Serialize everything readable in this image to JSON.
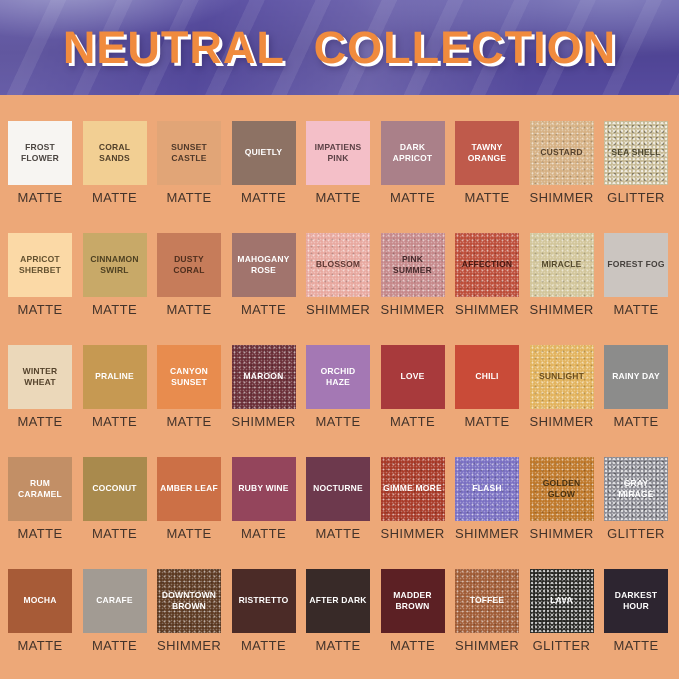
{
  "header": {
    "title": "NEUTRAL COLLECTION"
  },
  "colors": {
    "background": "#eda878",
    "header_background": "#4f4494",
    "title_color": "#f08b3e",
    "title_outline": "#ffffff",
    "finish_label_color": "#43332a"
  },
  "palette": {
    "rows": [
      [
        {
          "name": "FROST FLOWER",
          "finish": "MATTE",
          "color": "#f7f5f2",
          "label_color": "#4a4440"
        },
        {
          "name": "CORAL SANDS",
          "finish": "MATTE",
          "color": "#f2cf93",
          "label_color": "#51402a"
        },
        {
          "name": "SUNSET CASTLE",
          "finish": "MATTE",
          "color": "#e1a577",
          "label_color": "#50392a"
        },
        {
          "name": "QUIETLY",
          "finish": "MATTE",
          "color": "#8d7264",
          "label_color": "#ffffff"
        },
        {
          "name": "IMPATIENS PINK",
          "finish": "MATTE",
          "color": "#f4bfc8",
          "label_color": "#5c4146"
        },
        {
          "name": "DARK APRICOT",
          "finish": "MATTE",
          "color": "#aa8089",
          "label_color": "#ffffff"
        },
        {
          "name": "TAWNY ORANGE",
          "finish": "MATTE",
          "color": "#bf5a4b",
          "label_color": "#ffffff"
        },
        {
          "name": "CUSTARD",
          "finish": "SHIMMER",
          "color": "#d6b184",
          "label_color": "#55412c"
        },
        {
          "name": "SEA SHELL",
          "finish": "GLITTER",
          "color": "#c6ba96",
          "label_color": "#4c462e"
        }
      ],
      [
        {
          "name": "APRICOT SHERBET",
          "finish": "MATTE",
          "color": "#fbd9a6",
          "label_color": "#63512f"
        },
        {
          "name": "CINNAMON SWIRL",
          "finish": "MATTE",
          "color": "#c8a968",
          "label_color": "#4e4122"
        },
        {
          "name": "DUSTY CORAL",
          "finish": "MATTE",
          "color": "#c67c5a",
          "label_color": "#4e2e1d"
        },
        {
          "name": "MAHOGANY ROSE",
          "finish": "MATTE",
          "color": "#a1746d",
          "label_color": "#ffffff"
        },
        {
          "name": "BLOSSOM",
          "finish": "SHIMMER",
          "color": "#e8a9a0",
          "label_color": "#5e3833"
        },
        {
          "name": "PINK SUMMER",
          "finish": "SHIMMER",
          "color": "#c6898b",
          "label_color": "#452a2c"
        },
        {
          "name": "AFFECTION",
          "finish": "SHIMMER",
          "color": "#bd4e3a",
          "label_color": "#451711"
        },
        {
          "name": "MIRACLE",
          "finish": "SHIMMER",
          "color": "#d2c69b",
          "label_color": "#54492c"
        },
        {
          "name": "FOREST FOG",
          "finish": "MATTE",
          "color": "#cbc5c0",
          "label_color": "#45403c"
        }
      ],
      [
        {
          "name": "WINTER WHEAT",
          "finish": "MATTE",
          "color": "#ebd8ba",
          "label_color": "#55432c"
        },
        {
          "name": "PRALINE",
          "finish": "MATTE",
          "color": "#c69952",
          "label_color": "#ffffff"
        },
        {
          "name": "CANYON SUNSET",
          "finish": "MATTE",
          "color": "#e88c4e",
          "label_color": "#ffffff"
        },
        {
          "name": "MAROON",
          "finish": "SHIMMER",
          "color": "#6a2e37",
          "label_color": "#ffffff"
        },
        {
          "name": "ORCHID HAZE",
          "finish": "MATTE",
          "color": "#a478b4",
          "label_color": "#ffffff"
        },
        {
          "name": "LOVE",
          "finish": "MATTE",
          "color": "#a83a3c",
          "label_color": "#ffffff"
        },
        {
          "name": "CHILI",
          "finish": "MATTE",
          "color": "#c94b38",
          "label_color": "#ffffff"
        },
        {
          "name": "SUNLIGHT",
          "finish": "SHIMMER",
          "color": "#e2b35d",
          "label_color": "#6a4d1d"
        },
        {
          "name": "RAINY DAY",
          "finish": "MATTE",
          "color": "#8c8c8b",
          "label_color": "#ffffff"
        }
      ],
      [
        {
          "name": "RUM CARAMEL",
          "finish": "MATTE",
          "color": "#c28f66",
          "label_color": "#ffffff"
        },
        {
          "name": "COCONUT",
          "finish": "MATTE",
          "color": "#a98a4d",
          "label_color": "#ffffff"
        },
        {
          "name": "AMBER LEAF",
          "finish": "MATTE",
          "color": "#cc7046",
          "label_color": "#ffffff"
        },
        {
          "name": "RUBY WINE",
          "finish": "MATTE",
          "color": "#94455c",
          "label_color": "#ffffff"
        },
        {
          "name": "NOCTURNE",
          "finish": "MATTE",
          "color": "#6d394d",
          "label_color": "#ffffff"
        },
        {
          "name": "GIMME MORE",
          "finish": "SHIMMER",
          "color": "#a83a28",
          "label_color": "#ffffff"
        },
        {
          "name": "FLASH",
          "finish": "SHIMMER",
          "color": "#7a70c2",
          "label_color": "#ffffff"
        },
        {
          "name": "GOLDEN GLOW",
          "finish": "SHIMMER",
          "color": "#bf7829",
          "label_color": "#473010"
        },
        {
          "name": "GRAY MIRAGE",
          "finish": "GLITTER",
          "color": "#8c8c94",
          "label_color": "#ffffff"
        }
      ],
      [
        {
          "name": "MOCHA",
          "finish": "MATTE",
          "color": "#a75b37",
          "label_color": "#ffffff"
        },
        {
          "name": "CARAFE",
          "finish": "MATTE",
          "color": "#a29b93",
          "label_color": "#ffffff"
        },
        {
          "name": "DOWNTOWN BROWN",
          "finish": "SHIMMER",
          "color": "#5d3a22",
          "label_color": "#ffffff"
        },
        {
          "name": "RISTRETTO",
          "finish": "MATTE",
          "color": "#4b2b27",
          "label_color": "#ffffff"
        },
        {
          "name": "AFTER DARK",
          "finish": "MATTE",
          "color": "#382a28",
          "label_color": "#ffffff"
        },
        {
          "name": "MADDER BROWN",
          "finish": "MATTE",
          "color": "#5c2024",
          "label_color": "#ffffff"
        },
        {
          "name": "TOFFEE",
          "finish": "SHIMMER",
          "color": "#a05c36",
          "label_color": "#ffffff"
        },
        {
          "name": "LAVA",
          "finish": "GLITTER",
          "color": "#2b2b27",
          "label_color": "#ffffff"
        },
        {
          "name": "DARKEST HOUR",
          "finish": "MATTE",
          "color": "#2d2530",
          "label_color": "#ffffff"
        }
      ]
    ]
  }
}
